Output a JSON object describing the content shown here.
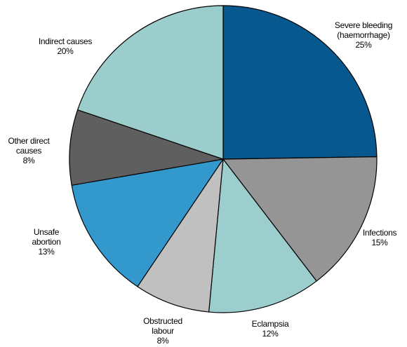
{
  "chart_data": {
    "type": "pie",
    "title": "",
    "slices": [
      {
        "lines": [
          "Severe bleeding",
          "(haemorrhage)",
          "25%"
        ],
        "value": 25,
        "color": "#06588e"
      },
      {
        "lines": [
          "Infections",
          "15%"
        ],
        "value": 15,
        "color": "#959595"
      },
      {
        "lines": [
          "Eclampsia",
          "12%"
        ],
        "value": 12,
        "color": "#9ccece"
      },
      {
        "lines": [
          "Obstructed",
          "labour",
          "8%"
        ],
        "value": 8,
        "color": "#c0c0c0"
      },
      {
        "lines": [
          "Unsafe",
          "abortion",
          "13%"
        ],
        "value": 13,
        "color": "#3399cc"
      },
      {
        "lines": [
          "Other direct",
          "causes",
          "8%"
        ],
        "value": 8,
        "color": "#5f5f5f"
      },
      {
        "lines": [
          "Indirect causes",
          "20%"
        ],
        "value": 20,
        "color": "#9ccdcd"
      }
    ]
  }
}
